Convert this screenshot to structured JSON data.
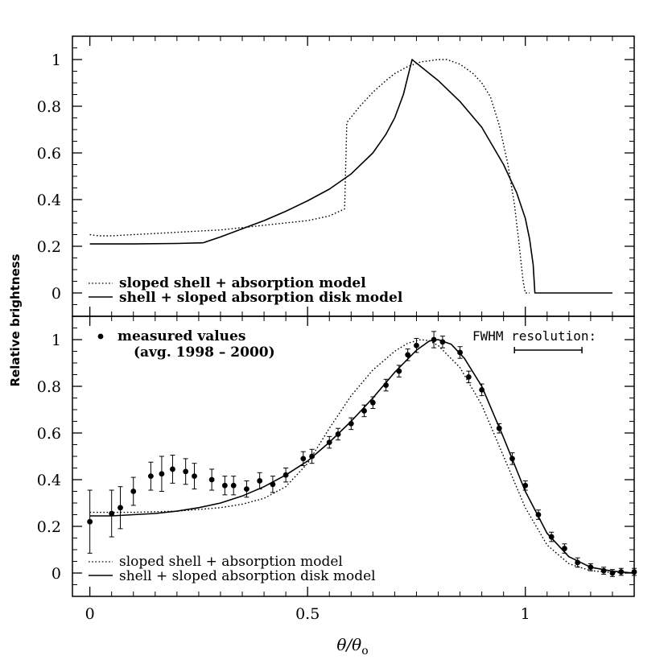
{
  "chart_data": [
    {
      "panel": "top",
      "type": "line",
      "title": "",
      "xlabel": "",
      "ylabel": "",
      "xlim": [
        -0.04,
        1.25
      ],
      "ylim": [
        -0.1,
        1.1
      ],
      "x_ticks": [
        0,
        0.5,
        1
      ],
      "y_ticks": [
        0,
        0.2,
        0.4,
        0.6,
        0.8,
        1
      ],
      "y_tick_labels": [
        "0",
        "0.2",
        "0.4",
        "0.6",
        "0.8",
        "1"
      ],
      "series": [
        {
          "name": "sloped shell + absorption model",
          "style": "dotted",
          "x": [
            0,
            0.02,
            0.05,
            0.1,
            0.15,
            0.2,
            0.25,
            0.3,
            0.35,
            0.4,
            0.45,
            0.5,
            0.55,
            0.585,
            0.59,
            0.62,
            0.65,
            0.68,
            0.7,
            0.73,
            0.76,
            0.78,
            0.8,
            0.82,
            0.85,
            0.88,
            0.9,
            0.92,
            0.94,
            0.96,
            0.975,
            0.985,
            0.995,
            1.0,
            1.01
          ],
          "y": [
            0.25,
            0.245,
            0.245,
            0.25,
            0.255,
            0.26,
            0.265,
            0.27,
            0.28,
            0.29,
            0.3,
            0.31,
            0.33,
            0.36,
            0.73,
            0.8,
            0.86,
            0.91,
            0.94,
            0.97,
            0.99,
            0.995,
            1.0,
            1.0,
            0.98,
            0.94,
            0.9,
            0.84,
            0.72,
            0.55,
            0.38,
            0.22,
            0.05,
            0.0,
            0.0
          ]
        },
        {
          "name": "shell + sloped absorption disk model",
          "style": "solid",
          "x": [
            0,
            0.1,
            0.2,
            0.26,
            0.3,
            0.35,
            0.4,
            0.45,
            0.5,
            0.55,
            0.6,
            0.65,
            0.68,
            0.7,
            0.72,
            0.74,
            0.76,
            0.8,
            0.85,
            0.9,
            0.95,
            0.98,
            1.0,
            1.01,
            1.018,
            1.022,
            1.03,
            1.1,
            1.2
          ],
          "y": [
            0.21,
            0.21,
            0.212,
            0.215,
            0.24,
            0.275,
            0.31,
            0.35,
            0.395,
            0.445,
            0.51,
            0.6,
            0.68,
            0.75,
            0.85,
            1.0,
            0.97,
            0.91,
            0.82,
            0.71,
            0.55,
            0.43,
            0.32,
            0.23,
            0.12,
            0.0,
            0.0,
            0.0,
            0.0
          ]
        }
      ],
      "legend": [
        {
          "label": "sloped shell + absorption model",
          "style": "dotted"
        },
        {
          "label": "shell + sloped absorption disk model",
          "style": "solid"
        }
      ],
      "legend_position": "bottom-left"
    },
    {
      "panel": "bottom",
      "type": "scatter",
      "title": "",
      "xlabel": "θ/θ",
      "xlabel_subscript": "o",
      "ylabel": "Relative brightness",
      "xlim": [
        -0.04,
        1.25
      ],
      "ylim": [
        -0.1,
        1.1
      ],
      "x_ticks": [
        0,
        0.5,
        1
      ],
      "x_tick_labels": [
        "0",
        "0.5",
        "1"
      ],
      "y_ticks": [
        0,
        0.2,
        0.4,
        0.6,
        0.8,
        1
      ],
      "y_tick_labels": [
        "0",
        "0.2",
        "0.4",
        "0.6",
        "0.8",
        "1"
      ],
      "measured": {
        "name": "measured values",
        "note": "(avg. 1998 – 2000)",
        "x": [
          0,
          0.05,
          0.07,
          0.1,
          0.14,
          0.165,
          0.19,
          0.22,
          0.24,
          0.28,
          0.31,
          0.33,
          0.36,
          0.39,
          0.42,
          0.45,
          0.49,
          0.51,
          0.55,
          0.57,
          0.6,
          0.63,
          0.65,
          0.68,
          0.71,
          0.73,
          0.75,
          0.79,
          0.81,
          0.85,
          0.87,
          0.9,
          0.94,
          0.97,
          1.0,
          1.03,
          1.06,
          1.09,
          1.12,
          1.15,
          1.18,
          1.2,
          1.22,
          1.25
        ],
        "y": [
          0.22,
          0.255,
          0.28,
          0.35,
          0.415,
          0.425,
          0.445,
          0.435,
          0.415,
          0.4,
          0.375,
          0.375,
          0.36,
          0.395,
          0.38,
          0.42,
          0.49,
          0.5,
          0.56,
          0.595,
          0.64,
          0.695,
          0.73,
          0.805,
          0.865,
          0.935,
          0.975,
          1.0,
          0.99,
          0.945,
          0.84,
          0.785,
          0.62,
          0.49,
          0.375,
          0.25,
          0.155,
          0.105,
          0.045,
          0.025,
          0.01,
          0.0,
          0.005,
          0.005
        ],
        "err": [
          0.135,
          0.1,
          0.09,
          0.06,
          0.06,
          0.075,
          0.06,
          0.055,
          0.055,
          0.045,
          0.04,
          0.04,
          0.035,
          0.035,
          0.035,
          0.03,
          0.03,
          0.03,
          0.025,
          0.025,
          0.025,
          0.025,
          0.025,
          0.025,
          0.025,
          0.025,
          0.03,
          0.035,
          0.025,
          0.025,
          0.025,
          0.025,
          0.02,
          0.025,
          0.02,
          0.02,
          0.02,
          0.02,
          0.02,
          0.015,
          0.015,
          0.015,
          0.015,
          0.015
        ]
      },
      "series": [
        {
          "name": "sloped shell + absorption model",
          "style": "dotted",
          "x": [
            0,
            0.1,
            0.2,
            0.3,
            0.35,
            0.4,
            0.45,
            0.5,
            0.55,
            0.6,
            0.65,
            0.7,
            0.73,
            0.76,
            0.78,
            0.8,
            0.85,
            0.9,
            0.95,
            1.0,
            1.05,
            1.1,
            1.15,
            1.2,
            1.25
          ],
          "y": [
            0.26,
            0.26,
            0.265,
            0.28,
            0.295,
            0.32,
            0.37,
            0.47,
            0.62,
            0.76,
            0.87,
            0.95,
            0.985,
            1.0,
            0.995,
            0.975,
            0.88,
            0.72,
            0.5,
            0.28,
            0.12,
            0.04,
            0.01,
            0.002,
            0.0
          ]
        },
        {
          "name": "shell + sloped absorption disk model",
          "style": "solid",
          "x": [
            0,
            0.05,
            0.1,
            0.15,
            0.2,
            0.25,
            0.3,
            0.35,
            0.4,
            0.45,
            0.5,
            0.55,
            0.6,
            0.65,
            0.7,
            0.75,
            0.78,
            0.8,
            0.83,
            0.86,
            0.9,
            0.95,
            1.0,
            1.05,
            1.1,
            1.15,
            1.2,
            1.25
          ],
          "y": [
            0.245,
            0.245,
            0.25,
            0.255,
            0.265,
            0.28,
            0.3,
            0.33,
            0.37,
            0.42,
            0.48,
            0.56,
            0.65,
            0.75,
            0.86,
            0.955,
            0.995,
            1.0,
            0.98,
            0.92,
            0.8,
            0.58,
            0.35,
            0.17,
            0.07,
            0.025,
            0.008,
            0.0
          ]
        }
      ],
      "legend": [
        {
          "label": "measured values",
          "style": "point"
        },
        {
          "label": "sloped shell + absorption model",
          "style": "dotted"
        },
        {
          "label": "shell + sloped absorption disk model",
          "style": "solid"
        }
      ],
      "legend_position": "top-left and bottom-left",
      "annotation": {
        "text": "FWHM resolution:",
        "bar_x": [
          0.975,
          1.13
        ],
        "bar_y": 0.955
      }
    }
  ]
}
